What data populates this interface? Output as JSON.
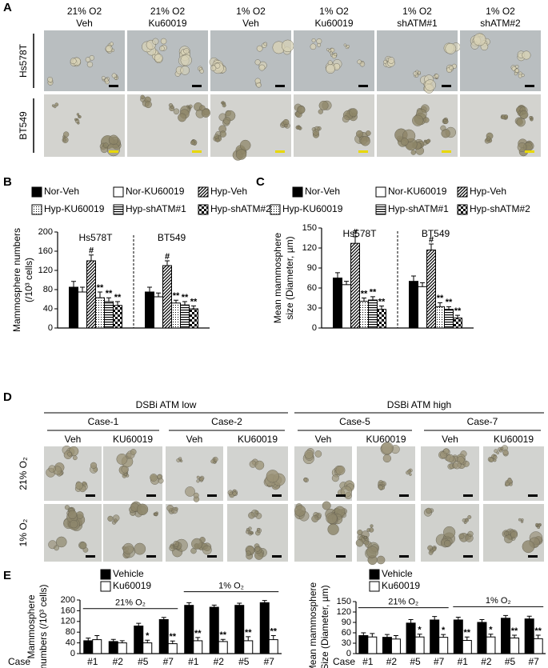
{
  "panel_a": {
    "label": "A",
    "columns": [
      [
        "21% O2",
        "Veh"
      ],
      [
        "21% O2",
        "Ku60019"
      ],
      [
        "1% O2",
        "Veh"
      ],
      [
        "1% O2",
        "Ku60019"
      ],
      [
        "1% O2",
        "shATM#1"
      ],
      [
        "1% O2",
        "shATM#2"
      ]
    ],
    "rows": [
      "Hs578T",
      "BT549"
    ]
  },
  "panel_d": {
    "label": "D",
    "groups": [
      {
        "label": "DSBi ATM low",
        "cases": [
          {
            "label": "Case-1",
            "conditions": [
              "Veh",
              "KU60019"
            ]
          },
          {
            "label": "Case-2",
            "conditions": [
              "Veh",
              "KU60019"
            ]
          }
        ]
      },
      {
        "label": "DSBi ATM high",
        "cases": [
          {
            "label": "Case-5",
            "conditions": [
              "Veh",
              "KU60019"
            ]
          },
          {
            "label": "Case-7",
            "conditions": [
              "Veh",
              "KU60019"
            ]
          }
        ]
      }
    ],
    "rows": [
      "21% O₂",
      "1% O₂"
    ]
  },
  "chart_data": [
    {
      "type": "bar",
      "panel": "B",
      "ylabel": [
        "Mammosphere numbers",
        "(/10³ cells)"
      ],
      "categories": [
        "Hs578T",
        "BT549"
      ],
      "series": [
        {
          "name": "Nor-Veh",
          "pattern": "solid",
          "values": [
            85,
            75
          ],
          "errors": [
            12,
            10
          ]
        },
        {
          "name": "Nor-KU60019",
          "pattern": "open",
          "values": [
            75,
            65
          ],
          "errors": [
            10,
            8
          ]
        },
        {
          "name": "Hyp-Veh",
          "pattern": "hatch",
          "values": [
            140,
            130
          ],
          "errors": [
            12,
            10
          ],
          "annotations": [
            "#",
            "#"
          ]
        },
        {
          "name": "Hyp-KU60019",
          "pattern": "dots",
          "values": [
            63,
            52
          ],
          "errors": [
            12,
            6
          ],
          "annotations": [
            "**",
            "**"
          ]
        },
        {
          "name": "Hyp-shATM#1",
          "pattern": "stripes",
          "values": [
            55,
            48
          ],
          "errors": [
            8,
            7
          ],
          "annotations": [
            "**",
            "**"
          ]
        },
        {
          "name": "Hyp-shATM#2",
          "pattern": "checker",
          "values": [
            47,
            40
          ],
          "errors": [
            8,
            6
          ],
          "annotations": [
            "**",
            "**"
          ]
        }
      ],
      "ylim": [
        0,
        200
      ],
      "yticks": [
        0,
        40,
        80,
        120,
        160,
        200
      ]
    },
    {
      "type": "bar",
      "panel": "C",
      "ylabel": [
        "Mean mammosphere",
        "size (Diameter, µm)"
      ],
      "categories": [
        "Hs578T",
        "BT549"
      ],
      "series": [
        {
          "name": "Nor-Veh",
          "pattern": "solid",
          "values": [
            75,
            70
          ],
          "errors": [
            8,
            8
          ]
        },
        {
          "name": "Nor-KU60019",
          "pattern": "open",
          "values": [
            65,
            62
          ],
          "errors": [
            5,
            6
          ]
        },
        {
          "name": "Hyp-Veh",
          "pattern": "hatch",
          "values": [
            127,
            117
          ],
          "errors": [
            10,
            9
          ],
          "annotations": [
            "#",
            "#"
          ]
        },
        {
          "name": "Hyp-KU60019",
          "pattern": "dots",
          "values": [
            40,
            32
          ],
          "errors": [
            5,
            6
          ],
          "annotations": [
            "**",
            "**"
          ]
        },
        {
          "name": "Hyp-shATM#1",
          "pattern": "stripes",
          "values": [
            42,
            28
          ],
          "errors": [
            5,
            4
          ],
          "annotations": [
            "**",
            "**"
          ]
        },
        {
          "name": "Hyp-shATM#2",
          "pattern": "checker",
          "values": [
            28,
            15
          ],
          "errors": [
            5,
            4
          ],
          "annotations": [
            "**",
            "**"
          ]
        }
      ],
      "ylim": [
        0,
        150
      ],
      "yticks": [
        0,
        30,
        60,
        90,
        120,
        150
      ]
    },
    {
      "type": "bar",
      "panel": "E",
      "ylabel": [
        "Mammosphere",
        "numbers (/10³ cells)"
      ],
      "xlabel": "Case",
      "groups": [
        {
          "label": "21% O₂",
          "categories": [
            "#1",
            "#2",
            "#5",
            "#7"
          ]
        },
        {
          "label": "1% O₂",
          "categories": [
            "#1",
            "#2",
            "#5",
            "#7"
          ]
        }
      ],
      "series": [
        {
          "name": "Vehicle",
          "color": "#000000",
          "values": [
            [
              48,
              45,
              103,
              127
            ],
            [
              180,
              173,
              180,
              190
            ]
          ],
          "errors": [
            [
              10,
              8,
              10,
              8
            ],
            [
              10,
              8,
              8,
              8
            ]
          ]
        },
        {
          "name": "Ku60019",
          "color": "#ffffff",
          "values": [
            [
              52,
              40,
              40,
              37
            ],
            [
              48,
              45,
              48,
              52
            ]
          ],
          "errors": [
            [
              15,
              8,
              10,
              10
            ],
            [
              12,
              8,
              15,
              15
            ]
          ],
          "annotations": [
            [
              null,
              null,
              "*",
              "**"
            ],
            [
              "**",
              "**",
              "**",
              "**"
            ]
          ]
        }
      ],
      "ylim": [
        0,
        200
      ],
      "yticks": [
        0,
        40,
        80,
        120,
        160,
        200
      ]
    },
    {
      "type": "bar",
      "panel": null,
      "ylabel": [
        "Mean mammosphere",
        "Size (Diameter, µm)"
      ],
      "xlabel": "Case",
      "groups": [
        {
          "label": "21% O₂",
          "categories": [
            "#1",
            "#2",
            "#5",
            "#7"
          ]
        },
        {
          "label": "1% O₂",
          "categories": [
            "#1",
            "#2",
            "#5",
            "#7"
          ]
        }
      ],
      "series": [
        {
          "name": "Vehicle",
          "color": "#000000",
          "values": [
            [
              52,
              47,
              88,
              97
            ],
            [
              97,
              90,
              102,
              100
            ]
          ],
          "errors": [
            [
              8,
              8,
              10,
              10
            ],
            [
              8,
              8,
              8,
              8
            ]
          ]
        },
        {
          "name": "Ku60019",
          "color": "#ffffff",
          "values": [
            [
              48,
              42,
              48,
              47
            ],
            [
              38,
              48,
              45,
              43
            ]
          ],
          "errors": [
            [
              10,
              10,
              8,
              8
            ],
            [
              10,
              8,
              8,
              10
            ]
          ],
          "annotations": [
            [
              null,
              null,
              "*",
              "*"
            ],
            [
              "**",
              "*",
              "**",
              "**"
            ]
          ]
        }
      ],
      "ylim": [
        0,
        150
      ],
      "yticks": [
        0,
        30,
        60,
        90,
        120,
        150
      ]
    }
  ]
}
